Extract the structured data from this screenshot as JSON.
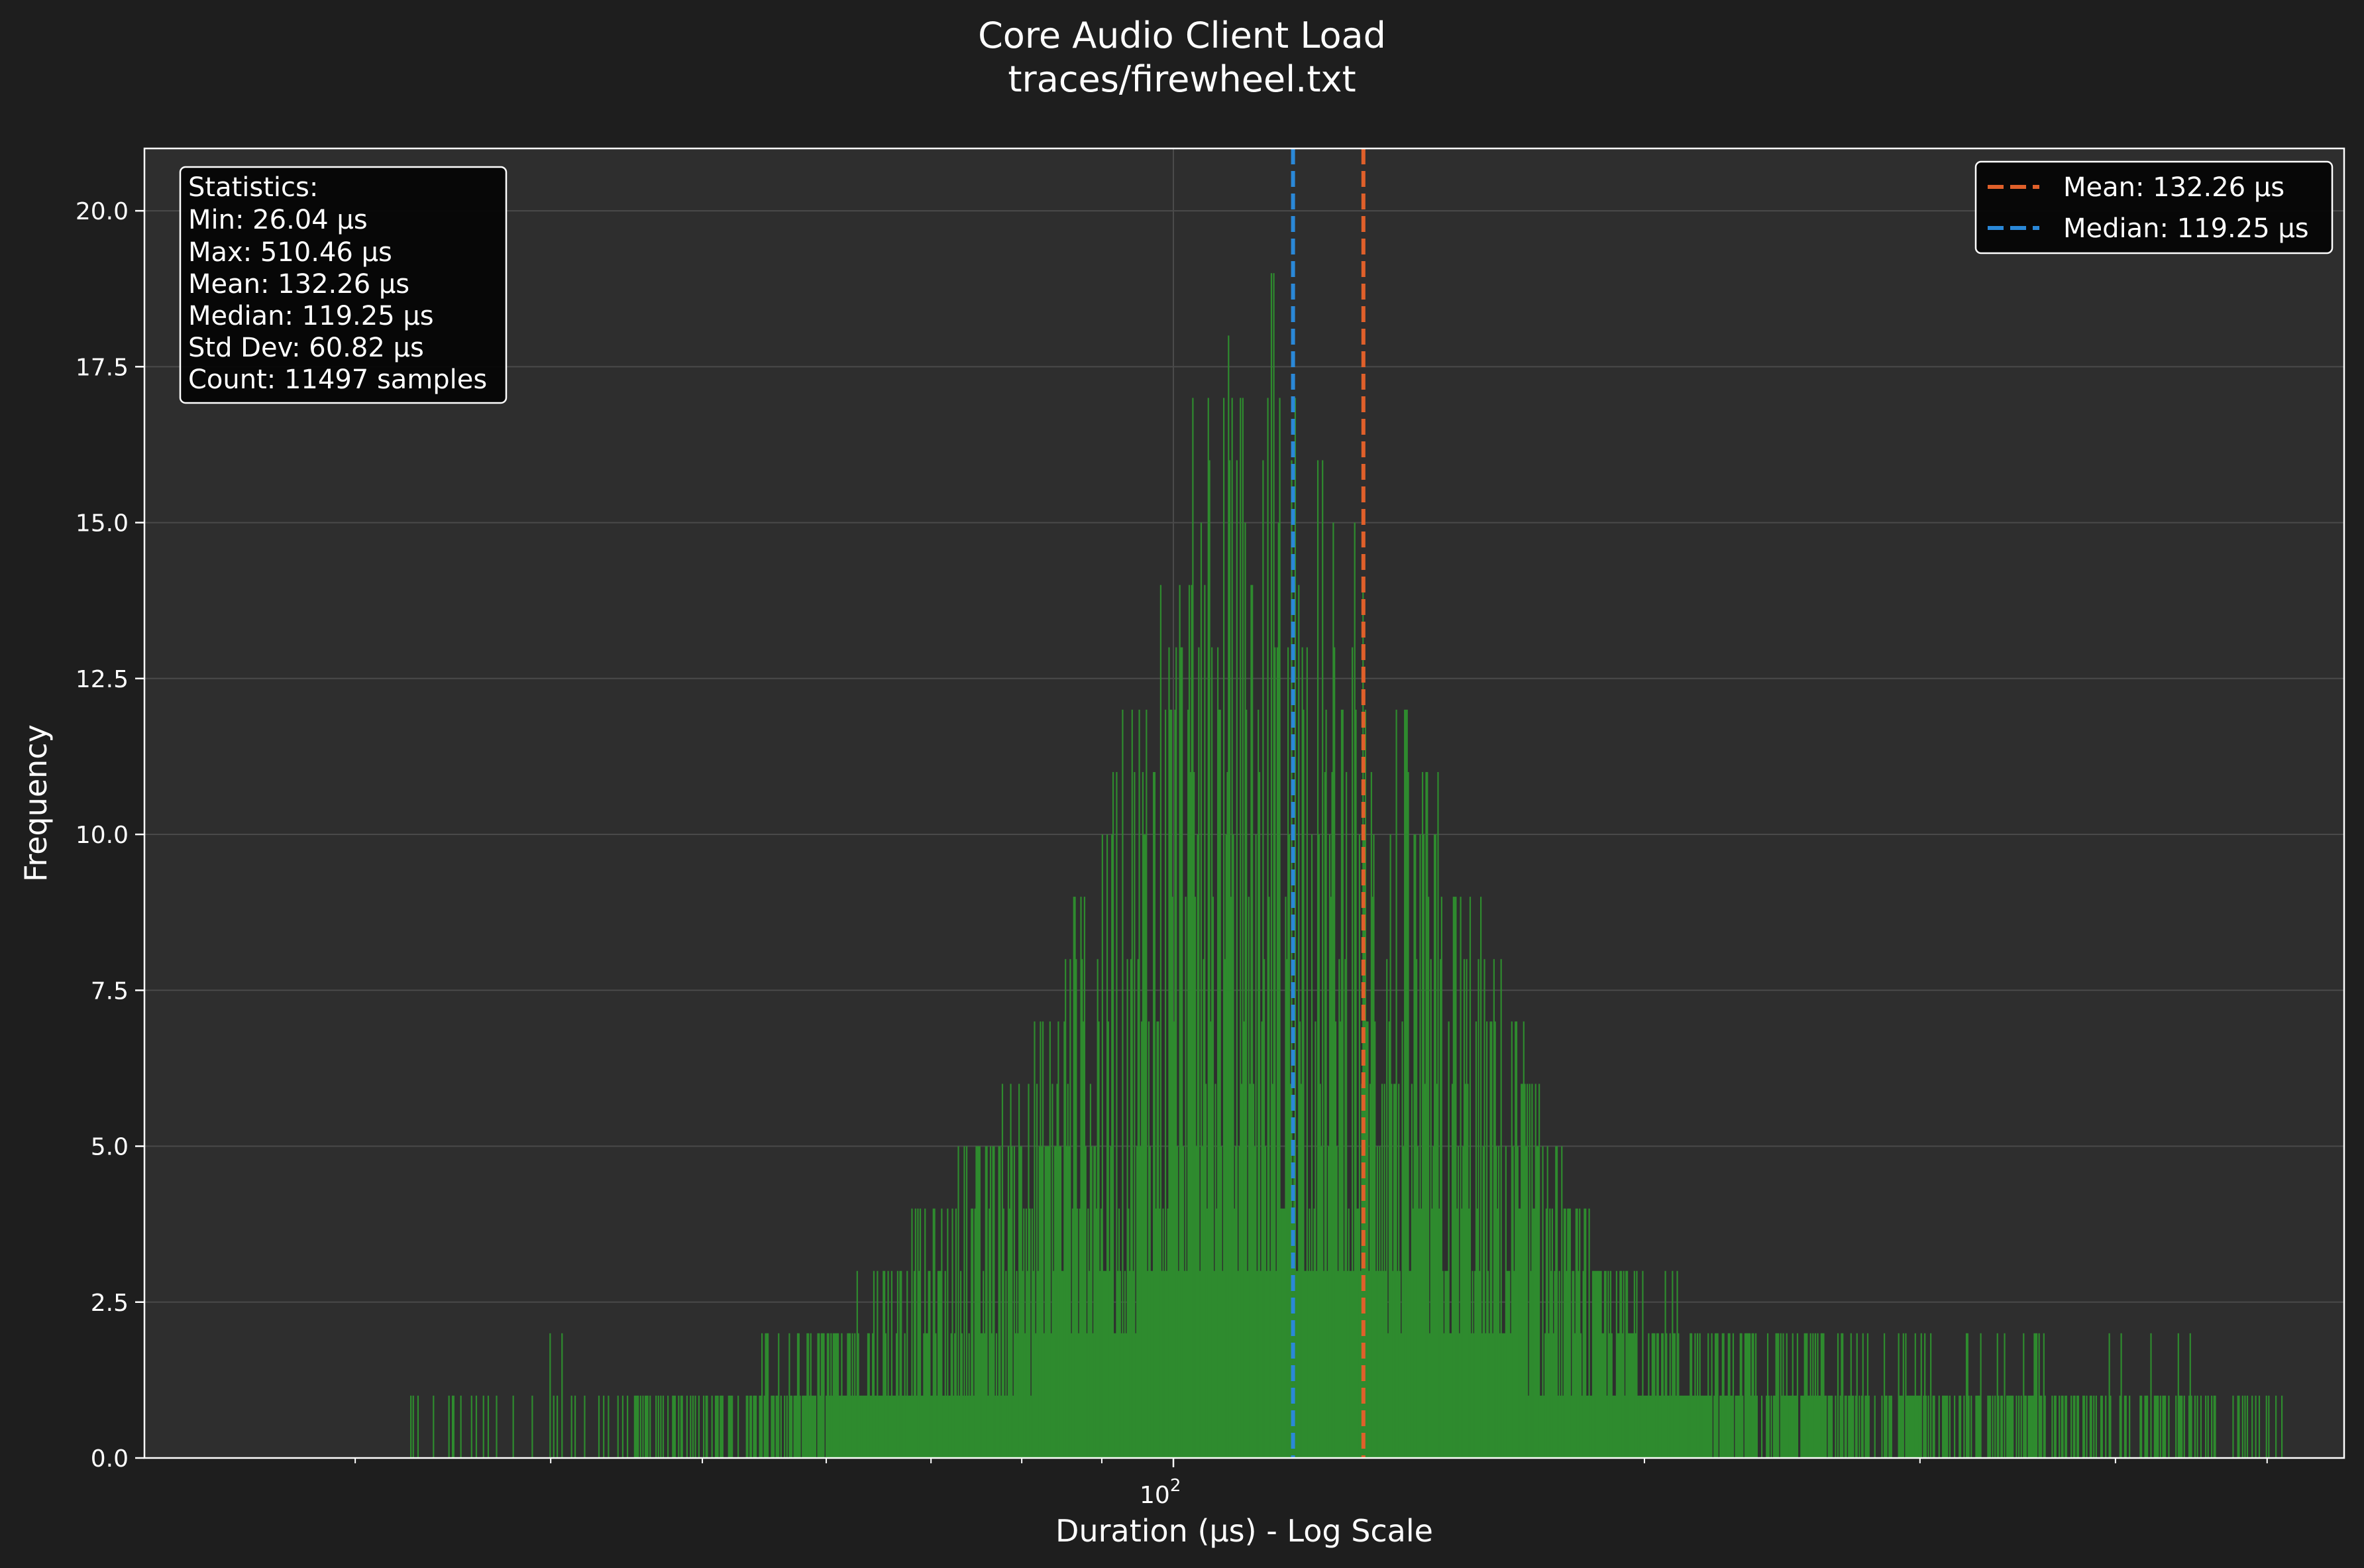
{
  "chart_data": {
    "type": "bar",
    "title": "Core Audio Client Load",
    "subtitle": "traces/firewheel.txt",
    "xlabel": "Duration (μs) - Log Scale",
    "ylabel": "Frequency",
    "x_scale": "log",
    "xlim": [
      22,
      560
    ],
    "ylim": [
      0,
      21
    ],
    "y_ticks": [
      "0.0",
      "2.5",
      "5.0",
      "7.5",
      "10.0",
      "12.5",
      "15.0",
      "17.5",
      "20.0"
    ],
    "x_major_tick": {
      "base": "10",
      "exp": "2"
    },
    "grid": true,
    "colors": {
      "bars": "#2e8b2e",
      "mean": "#e0602a",
      "median": "#2a88d8",
      "background": "#1e1e1e",
      "plot_bg": "#2e2e2e"
    },
    "mean_line": {
      "value": 132.26,
      "label": "Mean: 132.26 μs"
    },
    "median_line": {
      "value": 119.25,
      "label": "Median: 119.25 μs"
    },
    "statistics_box": {
      "header": "Statistics:",
      "lines": [
        "Min: 26.04 μs",
        "Max: 510.46 μs",
        "Mean: 132.26 μs",
        "Median: 119.25 μs",
        "Std Dev: 60.82 μs",
        "Count: 11497 samples"
      ]
    },
    "legend_placement": "top-right",
    "histogram_profile": {
      "x": [
        26,
        30,
        35,
        40,
        45,
        50,
        55,
        60,
        65,
        70,
        75,
        80,
        85,
        90,
        95,
        100,
        105,
        110,
        115,
        120,
        125,
        130,
        135,
        140,
        145,
        150,
        160,
        170,
        180,
        190,
        200,
        220,
        240,
        260,
        280,
        300,
        350,
        400,
        450,
        510
      ],
      "peak": [
        1,
        1,
        1,
        2,
        1,
        1,
        2,
        2,
        3,
        4,
        5,
        6,
        8,
        10,
        13,
        16,
        18,
        20,
        20,
        20,
        18,
        16,
        13,
        12,
        11,
        10,
        8,
        6,
        4,
        3,
        3,
        2,
        2,
        2,
        2,
        2,
        2,
        2,
        2,
        1
      ],
      "typical": [
        0.2,
        0.3,
        0.4,
        0.5,
        0.6,
        0.8,
        1,
        1.5,
        2,
        2.5,
        3.5,
        4.5,
        6,
        7,
        8,
        9,
        10,
        10,
        10,
        10,
        9,
        8.5,
        8,
        7,
        6.5,
        6,
        5,
        4,
        3,
        2.5,
        2,
        1.6,
        1.4,
        1.2,
        1,
        1,
        0.9,
        0.8,
        0.7,
        0.5
      ]
    }
  }
}
